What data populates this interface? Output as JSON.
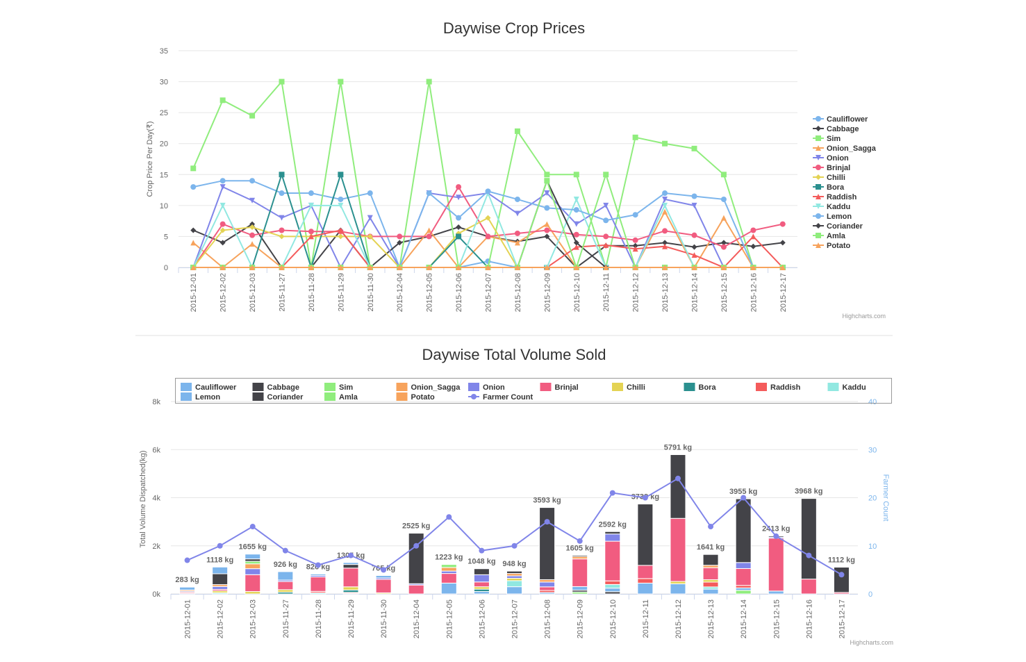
{
  "chart_data": [
    {
      "type": "line",
      "title": "Daywise Crop Prices",
      "y_label": "Crop Price Per Day(₹)",
      "credits": "Highcharts.com",
      "categories": [
        "2015-12-01",
        "2015-12-02",
        "2015-12-03",
        "2015-11-27",
        "2015-11-28",
        "2015-11-29",
        "2015-11-30",
        "2015-12-04",
        "2015-12-05",
        "2015-12-06",
        "2015-12-07",
        "2015-12-08",
        "2015-12-09",
        "2015-12-10",
        "2015-12-11",
        "2015-12-12",
        "2015-12-13",
        "2015-12-14",
        "2015-12-15",
        "2015-12-16",
        "2015-12-17"
      ],
      "ylim": [
        0,
        35
      ],
      "yticks": [
        0,
        5,
        10,
        15,
        20,
        25,
        30,
        35
      ],
      "grid": true,
      "legend": "right",
      "series": [
        {
          "name": "Cauliflower",
          "color": "#7cb5ec",
          "values": [
            13,
            14,
            14,
            12,
            12,
            11,
            12,
            0,
            0,
            0,
            1,
            0,
            0,
            0,
            0,
            0,
            0,
            0,
            0,
            0,
            0
          ]
        },
        {
          "name": "Cabbage",
          "color": "#434348",
          "values": [
            6,
            4,
            7,
            0,
            0,
            6,
            0,
            4,
            5,
            6.5,
            5,
            4.2,
            5,
            0,
            3.5,
            3.5,
            4,
            3.3,
            4,
            3.4,
            4
          ]
        },
        {
          "name": "Sim",
          "color": "#90ed7d",
          "values": [
            16,
            27,
            24.5,
            30,
            0,
            30,
            0,
            0,
            30,
            0,
            0,
            22,
            15,
            15,
            0,
            21,
            20,
            19.2,
            15,
            0,
            0
          ]
        },
        {
          "name": "Onion_Sagga",
          "color": "#f7a35c",
          "values": [
            4,
            0,
            3.8,
            0,
            0,
            0,
            0,
            0,
            6,
            0,
            5,
            4,
            7,
            0,
            0,
            0,
            9,
            0,
            8,
            0,
            0
          ]
        },
        {
          "name": "Onion",
          "color": "#8085e9",
          "values": [
            0,
            13,
            10.8,
            8,
            10,
            0,
            8,
            0,
            12,
            11.3,
            12,
            8.7,
            12,
            7,
            10,
            0,
            11,
            10,
            0,
            0,
            0
          ]
        },
        {
          "name": "Brinjal",
          "color": "#f15c80",
          "values": [
            0,
            7,
            5.2,
            6,
            5.8,
            5.8,
            5,
            5,
            5,
            13,
            5,
            5.5,
            6,
            5.3,
            5,
            4.4,
            5.9,
            5.2,
            3.3,
            6,
            7
          ]
        },
        {
          "name": "Chilli",
          "color": "#e4d354",
          "values": [
            0,
            6,
            6.5,
            5,
            5,
            5,
            5,
            0,
            0,
            5.5,
            8,
            0,
            0,
            0,
            0,
            0,
            0,
            0,
            0,
            0,
            0
          ]
        },
        {
          "name": "Bora",
          "color": "#2b908f",
          "values": [
            0,
            0,
            0,
            15,
            0,
            15,
            0,
            0,
            0,
            5,
            0,
            0,
            0,
            0,
            0,
            0,
            0,
            0,
            0,
            0,
            0
          ]
        },
        {
          "name": "Raddish",
          "color": "#f45b5b",
          "values": [
            0,
            0,
            0,
            0,
            5,
            6,
            0,
            0,
            0,
            0,
            0,
            0,
            0,
            3.3,
            3.6,
            3,
            3.4,
            2,
            0,
            5,
            0
          ]
        },
        {
          "name": "Kaddu",
          "color": "#91e8e1",
          "values": [
            0,
            10,
            0,
            0,
            10,
            10,
            0,
            0,
            0,
            0,
            12,
            0,
            0,
            11,
            0,
            0,
            10,
            0,
            0,
            0,
            0
          ]
        },
        {
          "name": "Lemon",
          "color": "#7cb5ec",
          "values": [
            0,
            0,
            0,
            0,
            0,
            0,
            0,
            0,
            12,
            8,
            12.3,
            11,
            9.6,
            9.3,
            7.6,
            8.5,
            12,
            11.5,
            11,
            0,
            0
          ]
        },
        {
          "name": "Coriander",
          "color": "#434348",
          "values": [
            0,
            0,
            0,
            0,
            0,
            0,
            0,
            0,
            0,
            0,
            0,
            0,
            14,
            4,
            0,
            0,
            0,
            0,
            0,
            0,
            0
          ]
        },
        {
          "name": "Amla",
          "color": "#90ed7d",
          "values": [
            0,
            0,
            0,
            0,
            0,
            0,
            0,
            0,
            0,
            0,
            0,
            0,
            14,
            0,
            15,
            0,
            0,
            0,
            0,
            0,
            0
          ]
        },
        {
          "name": "Potato",
          "color": "#f7a35c",
          "values": [
            0,
            0,
            0,
            0,
            0,
            0,
            0,
            0,
            0,
            0,
            0,
            0,
            0,
            0,
            0,
            0,
            0,
            0,
            0,
            0,
            0
          ]
        }
      ]
    },
    {
      "type": "stacked-bar",
      "title": "Daywise Total Volume Sold",
      "y_label": "Total Volume Dispatched(kg)",
      "y2_label": "Farmer Count",
      "credits": "Highcharts.com",
      "categories": [
        "2015-12-01",
        "2015-12-02",
        "2015-12-03",
        "2015-11-27",
        "2015-11-28",
        "2015-11-29",
        "2015-11-30",
        "2015-12-04",
        "2015-12-05",
        "2015-12-06",
        "2015-12-07",
        "2015-12-08",
        "2015-12-09",
        "2015-12-10",
        "2015-12-11",
        "2015-12-12",
        "2015-12-13",
        "2015-12-14",
        "2015-12-15",
        "2015-12-16",
        "2015-12-17"
      ],
      "ylim": [
        0,
        8000
      ],
      "yticks": [
        {
          "value": 0,
          "label": "0k"
        },
        {
          "value": 2000,
          "label": "2k"
        },
        {
          "value": 4000,
          "label": "4k"
        },
        {
          "value": 6000,
          "label": "6k"
        },
        {
          "value": 8000,
          "label": "8k"
        }
      ],
      "y2lim": [
        0,
        40
      ],
      "y2ticks": [
        0,
        10,
        20,
        30,
        40
      ],
      "grid": true,
      "legend": "top",
      "stack_labels": [
        "283 kg",
        "1118 kg",
        "1655 kg",
        "926 kg",
        "826 kg",
        "1305 kg",
        "765 kg",
        "2525 kg",
        "1223 kg",
        "1048 kg",
        "948 kg",
        "3593 kg",
        "1605 kg",
        "2592 kg",
        "3738 kg",
        "5791 kg",
        "1641 kg",
        "3955 kg",
        "2413 kg",
        "3968 kg",
        "1112 kg"
      ],
      "series": [
        {
          "name": "Cauliflower",
          "color": "#7cb5ec",
          "values": [
            120,
            280,
            200,
            350,
            60,
            80,
            100,
            0,
            0,
            0,
            0,
            0,
            0,
            0,
            0,
            0,
            0,
            0,
            0,
            0,
            0
          ]
        },
        {
          "name": "Cabbage",
          "color": "#434348",
          "values": [
            0,
            450,
            100,
            0,
            0,
            150,
            0,
            2100,
            0,
            250,
            98,
            3000,
            50,
            100,
            2550,
            2650,
            450,
            2650,
            50,
            3350,
            1050
          ]
        },
        {
          "name": "Sim",
          "color": "#90ed7d",
          "values": [
            0,
            0,
            105,
            0,
            0,
            0,
            0,
            0,
            123,
            0,
            0,
            0,
            0,
            0,
            0,
            0,
            0,
            0,
            0,
            0,
            0
          ]
        },
        {
          "name": "Onion_Sagga",
          "color": "#f7a35c",
          "values": [
            50,
            80,
            200,
            0,
            0,
            0,
            0,
            0,
            150,
            0,
            100,
            100,
            100,
            0,
            0,
            0,
            100,
            0,
            0,
            0,
            0
          ]
        },
        {
          "name": "Onion",
          "color": "#8085e9",
          "values": [
            40,
            120,
            250,
            60,
            60,
            0,
            60,
            55,
            100,
            300,
            100,
            200,
            0,
            300,
            0,
            0,
            0,
            250,
            43,
            0,
            0
          ]
        },
        {
          "name": "Brinjal",
          "color": "#f15c80",
          "values": [
            43,
            60,
            700,
            340,
            600,
            780,
            560,
            370,
            400,
            200,
            0,
            150,
            1150,
            1650,
            550,
            2621,
            500,
            700,
            2200,
            618,
            62
          ]
        },
        {
          "name": "Chilli",
          "color": "#e4d354",
          "values": [
            30,
            80,
            100,
            100,
            0,
            130,
            45,
            0,
            0,
            100,
            100,
            0,
            0,
            0,
            0,
            100,
            100,
            0,
            0,
            0,
            0
          ]
        },
        {
          "name": "Bora",
          "color": "#2b908f",
          "values": [
            0,
            0,
            0,
            76,
            0,
            100,
            0,
            0,
            0,
            98,
            0,
            0,
            0,
            0,
            0,
            0,
            0,
            0,
            0,
            0,
            0
          ]
        },
        {
          "name": "Raddish",
          "color": "#f45b5b",
          "values": [
            0,
            0,
            0,
            0,
            60,
            40,
            0,
            0,
            0,
            0,
            0,
            83,
            0,
            150,
            188,
            0,
            200,
            105,
            0,
            0,
            0
          ]
        },
        {
          "name": "Kaddu",
          "color": "#91e8e1",
          "values": [
            0,
            48,
            0,
            0,
            46,
            25,
            0,
            0,
            0,
            0,
            250,
            0,
            0,
            150,
            0,
            0,
            91,
            0,
            0,
            0,
            0
          ]
        },
        {
          "name": "Lemon",
          "color": "#7cb5ec",
          "values": [
            0,
            0,
            0,
            0,
            0,
            0,
            0,
            0,
            450,
            100,
            300,
            60,
            150,
            150,
            450,
            420,
            200,
            100,
            120,
            0,
            0
          ]
        },
        {
          "name": "Coriander",
          "color": "#434348",
          "values": [
            0,
            0,
            0,
            0,
            0,
            0,
            0,
            0,
            0,
            0,
            0,
            0,
            75,
            92,
            0,
            0,
            0,
            0,
            0,
            0,
            0
          ]
        },
        {
          "name": "Amla",
          "color": "#90ed7d",
          "values": [
            0,
            0,
            0,
            0,
            0,
            0,
            0,
            0,
            0,
            0,
            0,
            0,
            80,
            0,
            0,
            0,
            0,
            150,
            0,
            0,
            0
          ]
        },
        {
          "name": "Potato",
          "color": "#f7a35c",
          "values": [
            0,
            0,
            0,
            0,
            0,
            0,
            0,
            0,
            0,
            0,
            0,
            0,
            0,
            0,
            0,
            0,
            0,
            0,
            0,
            0,
            0
          ]
        },
        {
          "name": "Farmer Count",
          "color": "#8085e9",
          "axis": "y2",
          "type": "line",
          "values": [
            7,
            10,
            14,
            9,
            6,
            8,
            5,
            10,
            16,
            9,
            10,
            15,
            11,
            21,
            20,
            24,
            14,
            20,
            12,
            8,
            4
          ]
        }
      ]
    }
  ]
}
